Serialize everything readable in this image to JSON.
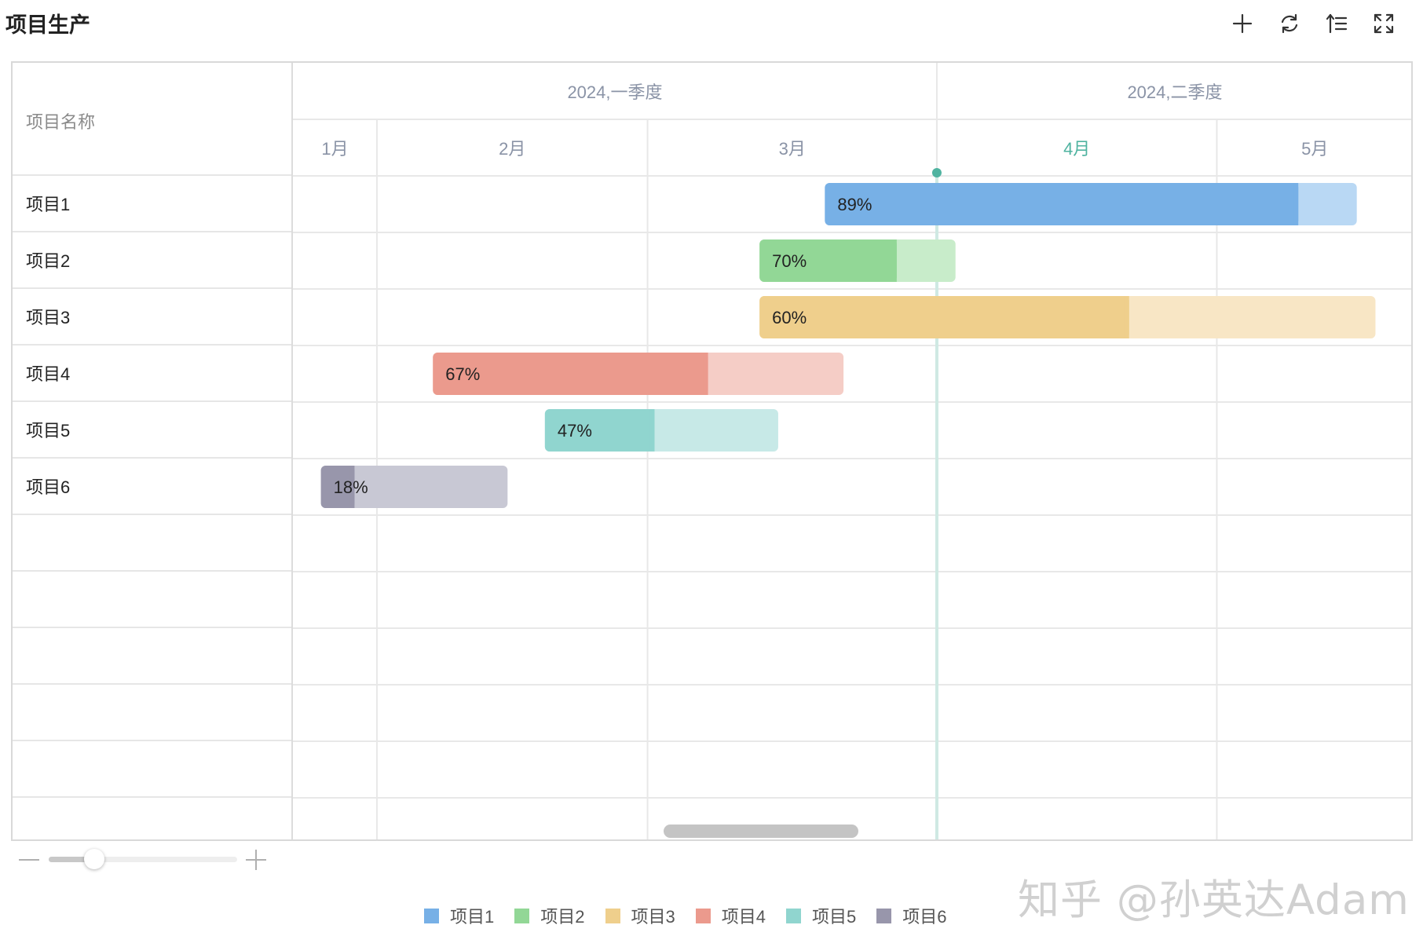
{
  "header": {
    "title": "项目生产"
  },
  "toolbar": [
    {
      "name": "add-icon"
    },
    {
      "name": "refresh-icon"
    },
    {
      "name": "sort-icon"
    },
    {
      "name": "fullscreen-icon"
    }
  ],
  "left_header": "项目名称",
  "chart_data": {
    "type": "gantt",
    "x_axis": {
      "quarters": [
        {
          "label": "2024,一季度",
          "start": "2024-01-01",
          "end": "2024-03-31"
        },
        {
          "label": "2024,二季度",
          "start": "2024-04-01",
          "end": "2024-06-30"
        }
      ],
      "months": [
        {
          "label": "1月",
          "start": "2024-01-01",
          "end": "2024-01-31"
        },
        {
          "label": "2月",
          "start": "2024-02-01",
          "end": "2024-02-29"
        },
        {
          "label": "3月",
          "start": "2024-03-01",
          "end": "2024-03-31"
        },
        {
          "label": "4月",
          "start": "2024-04-01",
          "end": "2024-04-30",
          "highlight": true
        },
        {
          "label": "5月",
          "start": "2024-05-01",
          "end": "2024-05-31"
        }
      ],
      "visible_range": [
        "2024-01-23",
        "2024-05-22"
      ]
    },
    "today": "2024-04-01",
    "tasks": [
      {
        "name": "项目1",
        "start": "2024-03-20",
        "end": "2024-05-15",
        "progress": 89,
        "label": "89%",
        "color": "#77b0e6",
        "light": "#b9d8f4"
      },
      {
        "name": "项目2",
        "start": "2024-03-13",
        "end": "2024-04-02",
        "progress": 70,
        "label": "70%",
        "color": "#92d796",
        "light": "#c8ecca"
      },
      {
        "name": "项目3",
        "start": "2024-03-13",
        "end": "2024-05-17",
        "progress": 60,
        "label": "60%",
        "color": "#efcf8c",
        "light": "#f8e6c5"
      },
      {
        "name": "项目4",
        "start": "2024-02-07",
        "end": "2024-03-21",
        "progress": 67,
        "label": "67%",
        "color": "#eb9a8d",
        "light": "#f5cdc6"
      },
      {
        "name": "项目5",
        "start": "2024-02-19",
        "end": "2024-03-14",
        "progress": 47,
        "label": "47%",
        "color": "#90d5cf",
        "light": "#c7e9e7"
      },
      {
        "name": "项目6",
        "start": "2024-01-26",
        "end": "2024-02-14",
        "progress": 18,
        "label": "18%",
        "color": "#9896ab",
        "light": "#c8c8d4"
      }
    ]
  },
  "zoom": {
    "level": 0.24
  },
  "legend": [
    {
      "label": "项目1",
      "color": "#77b0e6"
    },
    {
      "label": "项目2",
      "color": "#92d796"
    },
    {
      "label": "项目3",
      "color": "#efcf8c"
    },
    {
      "label": "项目4",
      "color": "#eb9a8d"
    },
    {
      "label": "项目5",
      "color": "#90d5cf"
    },
    {
      "label": "项目6",
      "color": "#9896ab"
    }
  ],
  "watermark": "知乎 @孙英达Adam",
  "colors": {
    "today": "#4fb3a0",
    "grid": "#e8e8e8",
    "header_text": "#8a93a6"
  }
}
